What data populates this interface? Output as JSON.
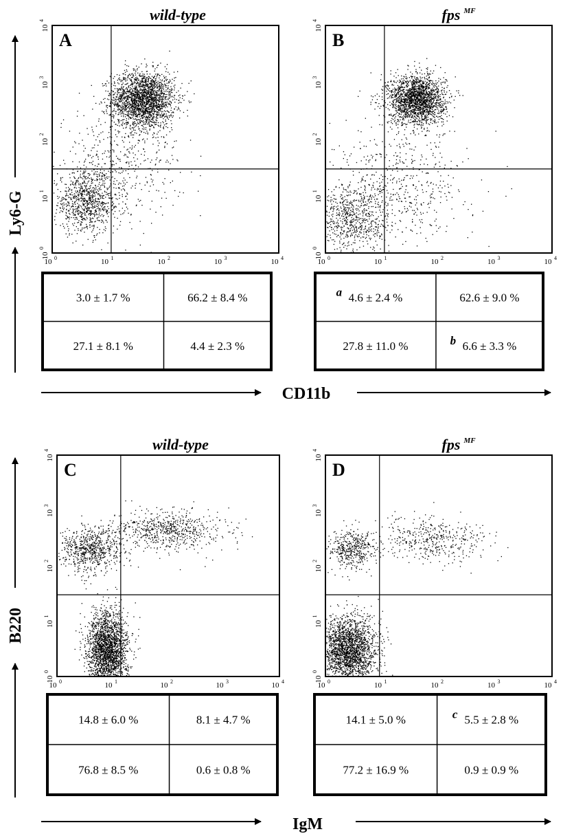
{
  "chart_data": [
    {
      "type": "scatter",
      "panel": "A",
      "title": "wild-type",
      "xlabel": "CD11b",
      "ylabel": "Ly6-G",
      "xscale": "log",
      "yscale": "log",
      "xlim": [
        1,
        10000
      ],
      "ylim": [
        1,
        10000
      ],
      "x_ticks": [
        "10",
        "10",
        "10",
        "10",
        "10"
      ],
      "x_ticks_exp": [
        "0",
        "1",
        "2",
        "3",
        "4"
      ],
      "y_ticks": [
        "10",
        "10",
        "10",
        "10",
        "10"
      ],
      "y_ticks_exp": [
        "0",
        "1",
        "2",
        "3",
        "4"
      ],
      "gates": {
        "x": 11,
        "y": 30
      },
      "populations": [
        {
          "cx": 40,
          "cy": 500,
          "sx": 0.28,
          "sy": 0.25,
          "n": 2200
        },
        {
          "cx": 4,
          "cy": 8,
          "sx": 0.3,
          "sy": 0.27,
          "n": 900
        },
        {
          "cx": 15,
          "cy": 40,
          "sx": 0.55,
          "sy": 0.45,
          "n": 420
        }
      ],
      "quadrants": {
        "upper_left": {
          "value": "3.0 ± 1.7 %",
          "mark": ""
        },
        "upper_right": {
          "value": "66.2 ± 8.4 %",
          "mark": ""
        },
        "lower_left": {
          "value": "27.1 ± 8.1 %",
          "mark": ""
        },
        "lower_right": {
          "value": "4.4 ± 2.3 %",
          "mark": ""
        }
      }
    },
    {
      "type": "scatter",
      "panel": "B",
      "title": "fps",
      "title_sup": "MF",
      "xlabel": "CD11b",
      "ylabel": "Ly6-G",
      "xscale": "log",
      "yscale": "log",
      "xlim": [
        1,
        10000
      ],
      "ylim": [
        1,
        10000
      ],
      "x_ticks": [
        "10",
        "10",
        "10",
        "10",
        "10"
      ],
      "x_ticks_exp": [
        "0",
        "1",
        "2",
        "3",
        "4"
      ],
      "y_ticks": [
        "10",
        "10",
        "10",
        "10",
        "10"
      ],
      "y_ticks_exp": [
        "0",
        "1",
        "2",
        "3",
        "4"
      ],
      "gates": {
        "x": 11,
        "y": 30
      },
      "populations": [
        {
          "cx": 40,
          "cy": 500,
          "sx": 0.25,
          "sy": 0.22,
          "n": 2000
        },
        {
          "cx": 3,
          "cy": 4,
          "sx": 0.33,
          "sy": 0.3,
          "n": 700
        },
        {
          "cx": 20,
          "cy": 15,
          "sx": 0.6,
          "sy": 0.5,
          "n": 520
        }
      ],
      "quadrants": {
        "upper_left": {
          "value": "4.6 ± 2.4 %",
          "mark": "a"
        },
        "upper_right": {
          "value": "62.6 ± 9.0 %",
          "mark": ""
        },
        "lower_left": {
          "value": "27.8 ± 11.0 %",
          "mark": ""
        },
        "lower_right": {
          "value": "6.6 ± 3.3 %",
          "mark": "b"
        }
      }
    },
    {
      "type": "scatter",
      "panel": "C",
      "title": "wild-type",
      "xlabel": "IgM",
      "ylabel": "B220",
      "xscale": "log",
      "yscale": "log",
      "xlim": [
        1,
        10000
      ],
      "ylim": [
        1,
        10000
      ],
      "x_ticks": [
        "10",
        "10",
        "10",
        "10",
        "10"
      ],
      "x_ticks_exp": [
        "0",
        "1",
        "2",
        "3",
        "4"
      ],
      "y_ticks": [
        "10",
        "10",
        "10",
        "10",
        "10"
      ],
      "y_ticks_exp": [
        "0",
        "1",
        "2",
        "3",
        "4"
      ],
      "gates": {
        "x": 14,
        "y": 30
      },
      "populations": [
        {
          "cx": 8,
          "cy": 3,
          "sx": 0.18,
          "sy": 0.35,
          "n": 2200
        },
        {
          "cx": 4,
          "cy": 200,
          "sx": 0.28,
          "sy": 0.2,
          "n": 700
        },
        {
          "cx": 100,
          "cy": 450,
          "sx": 0.5,
          "sy": 0.18,
          "n": 650
        }
      ],
      "quadrants": {
        "upper_left": {
          "value": "14.8 ± 6.0 %",
          "mark": ""
        },
        "upper_right": {
          "value": "8.1 ± 4.7 %",
          "mark": ""
        },
        "lower_left": {
          "value": "76.8 ± 8.5 %",
          "mark": ""
        },
        "lower_right": {
          "value": "0.6 ± 0.8 %",
          "mark": ""
        }
      }
    },
    {
      "type": "scatter",
      "panel": "D",
      "title": "fps",
      "title_sup": "MF",
      "xlabel": "IgM",
      "ylabel": "B220",
      "xscale": "log",
      "yscale": "log",
      "xlim": [
        1,
        10000
      ],
      "ylim": [
        1,
        10000
      ],
      "x_ticks": [
        "10",
        "10",
        "10",
        "10",
        "10"
      ],
      "x_ticks_exp": [
        "0",
        "1",
        "2",
        "3",
        "4"
      ],
      "y_ticks": [
        "10",
        "10",
        "10",
        "10",
        "10"
      ],
      "y_ticks_exp": [
        "0",
        "1",
        "2",
        "3",
        "4"
      ],
      "gates": {
        "x": 9,
        "y": 30
      },
      "populations": [
        {
          "cx": 2.5,
          "cy": 3,
          "sx": 0.25,
          "sy": 0.3,
          "n": 2200
        },
        {
          "cx": 3,
          "cy": 200,
          "sx": 0.22,
          "sy": 0.18,
          "n": 450
        },
        {
          "cx": 80,
          "cy": 300,
          "sx": 0.5,
          "sy": 0.2,
          "n": 420
        }
      ],
      "quadrants": {
        "upper_left": {
          "value": "14.1 ± 5.0 %",
          "mark": ""
        },
        "upper_right": {
          "value": "5.5 ± 2.8 %",
          "mark": "c"
        },
        "lower_left": {
          "value": "77.2 ± 16.9 %",
          "mark": ""
        },
        "lower_right": {
          "value": "0.9 ± 0.9 %",
          "mark": ""
        }
      }
    }
  ],
  "labels": {
    "row1_x_axis": "CD11b",
    "row1_y_axis": "Ly6-G",
    "row2_x_axis": "IgM",
    "row2_y_axis": "B220"
  }
}
